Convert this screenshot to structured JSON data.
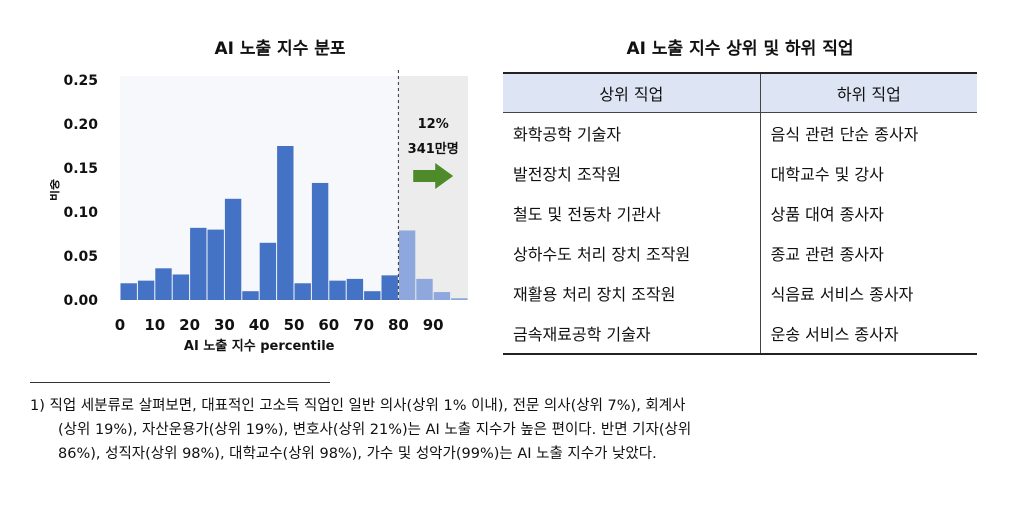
{
  "left_title": "AI 노출 지수 분포",
  "right_title": "AI 노출 지수 상위 및 하위 직업",
  "table": {
    "headers": [
      "상위 직업",
      "하위 직업"
    ],
    "rows": [
      [
        "화학공학 기술자",
        "음식 관련 단순 종사자"
      ],
      [
        "발전장치 조작원",
        "대학교수 및 강사"
      ],
      [
        "철도 및 전동차 기관사",
        "상품 대여 종사자"
      ],
      [
        "상하수도 처리 장치 조작원",
        "종교 관련 종사자"
      ],
      [
        "재활용 처리 장치 조작원",
        "식음료 서비스 종사자"
      ],
      [
        "금속재료공학 기술자",
        "운송 서비스 종사자"
      ]
    ]
  },
  "footnote": {
    "line1": "1) 직업 세분류로 살펴보면, 대표적인 고소득 직업인 일반 의사(상위 1% 이내), 전문 의사(상위 7%), 회계사",
    "line2": "(상위 19%), 자산운용가(상위 19%), 변호사(상위 21%)는 AI 노출 지수가 높은 편이다. 반면 기자(상위",
    "line3": "86%), 성직자(상위 98%), 대학교수(상위 98%), 가수 및 성악가(99%)는 AI 노출 지수가 낮았다."
  },
  "chart_data": {
    "type": "bar",
    "title": "AI 노출 지수 분포",
    "xlabel": "AI 노출 지수 percentile",
    "ylabel": "비중",
    "xlim": [
      0,
      100
    ],
    "ylim": [
      0,
      0.25
    ],
    "x_ticks": [
      "0",
      "10",
      "20",
      "30",
      "40",
      "50",
      "60",
      "70",
      "80",
      "90"
    ],
    "y_ticks": [
      "0.00",
      "0.05",
      "0.10",
      "0.15",
      "0.20",
      "0.25"
    ],
    "bin_width": 5,
    "x": [
      0,
      5,
      10,
      15,
      20,
      25,
      30,
      35,
      40,
      45,
      50,
      55,
      60,
      65,
      70,
      75,
      80,
      85,
      90,
      95
    ],
    "values": [
      0.019,
      0.022,
      0.036,
      0.029,
      0.082,
      0.08,
      0.115,
      0.01,
      0.065,
      0.175,
      0.019,
      0.133,
      0.022,
      0.024,
      0.01,
      0.028,
      0.079,
      0.024,
      0.009,
      0.002
    ],
    "highlight_from": 80,
    "annotation": {
      "percent": "12%",
      "count": "341만명"
    },
    "colors": {
      "bar": "#4472c4",
      "bar_highlight": "#8ea8dd",
      "shade": "#ececec",
      "arrow": "#4e8a2a"
    }
  }
}
